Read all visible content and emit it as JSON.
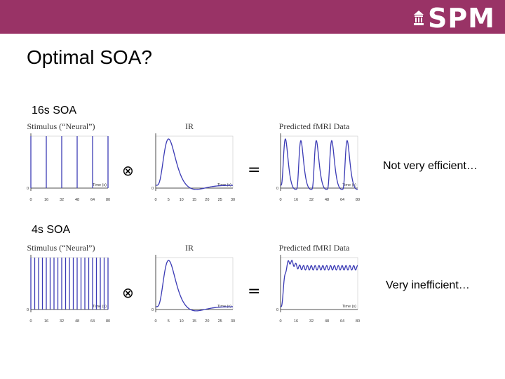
{
  "header": {
    "logo_text": "SPM",
    "logo_icon": "building-icon",
    "brand_color": "#993366"
  },
  "title": "Optimal SOA?",
  "operators": {
    "convolve": "⊗",
    "equals": "="
  },
  "rows": [
    {
      "label": "16s SOA",
      "note": "Not very efficient…",
      "stimulus": {
        "title": "Stimulus (“Neural”)",
        "axis_label": "Time (s)",
        "zero_label": "0",
        "x_ticks": [
          "0",
          "16",
          "32",
          "48",
          "64",
          "80"
        ],
        "soa": 16,
        "xmax": 80,
        "onsets": [
          0,
          16,
          32,
          48,
          64,
          80
        ]
      },
      "irf": {
        "title": "IR",
        "axis_label": "Time (s)",
        "zero_label": "0",
        "x_ticks": [
          "0",
          "5",
          "10",
          "15",
          "20",
          "25",
          "30"
        ],
        "xmax": 30
      },
      "predicted": {
        "title": "Predicted fMRI Data",
        "axis_label": "Time (s)",
        "zero_label": "0",
        "x_ticks": [
          "0",
          "16",
          "32",
          "48",
          "64",
          "80"
        ],
        "soa": 16,
        "xmax": 80
      }
    },
    {
      "label": "4s SOA",
      "note": "Very inefficient…",
      "stimulus": {
        "title": "Stimulus (“Neural”)",
        "axis_label": "Time (s)",
        "zero_label": "0",
        "x_ticks": [
          "0",
          "16",
          "32",
          "48",
          "64",
          "80"
        ],
        "soa": 4,
        "xmax": 80,
        "onsets": [
          0,
          4,
          8,
          12,
          16,
          20,
          24,
          28,
          32,
          36,
          40,
          44,
          48,
          52,
          56,
          60,
          64,
          68,
          72,
          76,
          80
        ]
      },
      "irf": {
        "title": "IR",
        "axis_label": "Time (s)",
        "zero_label": "0",
        "x_ticks": [
          "0",
          "5",
          "10",
          "15",
          "20",
          "25",
          "30"
        ],
        "xmax": 30
      },
      "predicted": {
        "title": "Predicted fMRI Data",
        "axis_label": "Time (s)",
        "zero_label": "0",
        "x_ticks": [
          "0",
          "16",
          "32",
          "48",
          "64",
          "80"
        ],
        "soa": 4,
        "xmax": 80
      }
    }
  ],
  "colors": {
    "signal": "#3b3bb5",
    "axis": "#222222",
    "grid": "#c8c8c8"
  }
}
